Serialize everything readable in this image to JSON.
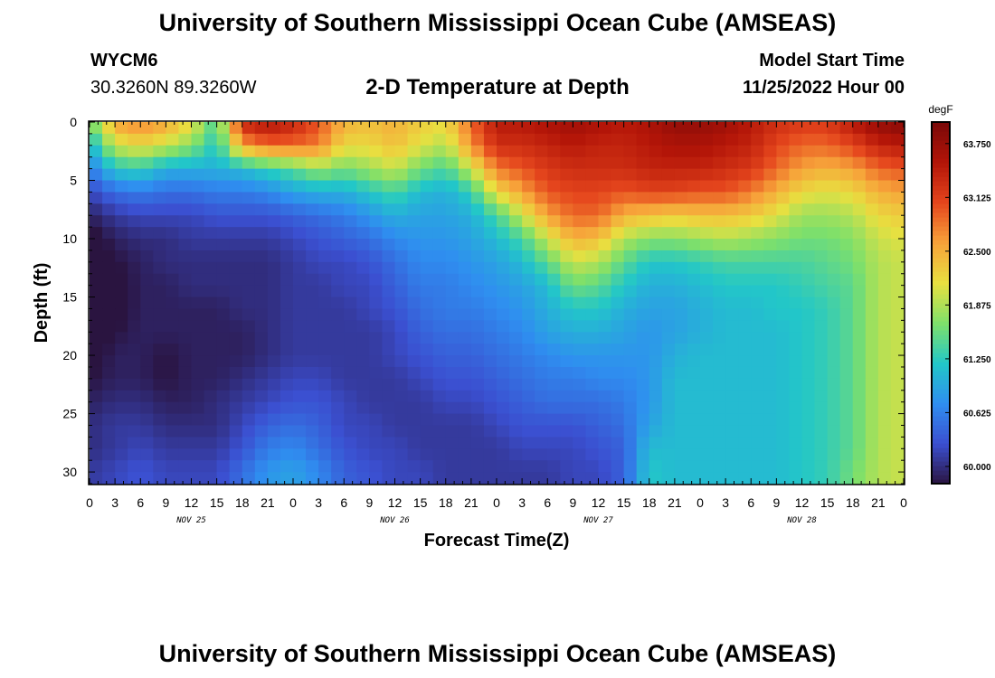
{
  "header": {
    "title": "University of Southern Mississippi Ocean Cube (AMSEAS)",
    "station_id": "WYCM6",
    "station_coords": "30.3260N  89.3260W",
    "plot_title": "2-D Temperature at Depth",
    "model_start_label": "Model Start Time",
    "model_start_date": "11/25/2022 Hour 00"
  },
  "footer": {
    "title": "University of Southern Mississippi Ocean Cube (AMSEAS)"
  },
  "colors": {
    "colormap": [
      "#2a1440",
      "#3b4fd0",
      "#2f8ef0",
      "#22c7c8",
      "#7fe06a",
      "#e8e040",
      "#f7a33a",
      "#e5461d",
      "#b31508",
      "#7a0808"
    ]
  },
  "chart_data": {
    "type": "heatmap",
    "xlabel": "Forecast Time(Z)",
    "ylabel": "Depth (ft)",
    "x_tick_labels": [
      "0",
      "3",
      "6",
      "9",
      "12",
      "15",
      "18",
      "21",
      "0",
      "3",
      "6",
      "9",
      "12",
      "15",
      "18",
      "21",
      "0",
      "3",
      "6",
      "9",
      "12",
      "15",
      "18",
      "21",
      "0",
      "3",
      "6",
      "9",
      "12",
      "15",
      "18",
      "21",
      "0"
    ],
    "day_labels": [
      "NOV 25",
      "NOV 26",
      "NOV 27",
      "NOV 28"
    ],
    "xlim_hours": [
      0,
      96
    ],
    "y_tick_labels": [
      "0",
      "5",
      "10",
      "15",
      "20",
      "25",
      "30"
    ],
    "ylim_ft": [
      0,
      31
    ],
    "y_inverted": true,
    "colorbar": {
      "unit": "degF",
      "range": [
        59.8,
        64.0
      ],
      "tick_labels": [
        "63.750",
        "63.125",
        "62.500",
        "61.875",
        "61.250",
        "60.625",
        "60.000"
      ],
      "tick_values": [
        63.75,
        63.125,
        62.5,
        61.875,
        61.25,
        60.625,
        60.0
      ]
    },
    "depth_levels_ft": [
      0,
      2,
      4,
      6,
      8,
      10,
      12,
      14,
      16,
      18,
      20,
      22,
      24,
      26,
      28,
      30
    ],
    "time_hours": [
      0,
      3,
      6,
      9,
      12,
      15,
      18,
      21,
      24,
      27,
      30,
      33,
      36,
      39,
      42,
      45,
      48,
      51,
      54,
      57,
      60,
      63,
      66,
      69,
      72,
      75,
      78,
      81,
      84,
      87,
      90,
      93,
      96
    ],
    "temperature_profiles": [
      {
        "time": 0,
        "values": [
          61.6,
          61.0,
          60.6,
          60.2,
          59.9,
          59.7,
          59.6,
          59.5,
          59.5,
          59.6,
          59.7,
          59.8,
          59.9,
          60.0,
          60.0,
          60.1
        ]
      },
      {
        "time": 3,
        "values": [
          62.6,
          62.0,
          61.2,
          60.5,
          60.1,
          59.9,
          59.8,
          59.7,
          59.7,
          59.8,
          59.9,
          59.9,
          60.0,
          60.1,
          60.1,
          60.2
        ]
      },
      {
        "time": 6,
        "values": [
          62.8,
          62.2,
          61.3,
          60.6,
          60.2,
          60.0,
          59.9,
          59.9,
          59.9,
          59.9,
          59.9,
          59.9,
          60.0,
          60.1,
          60.2,
          60.3
        ]
      },
      {
        "time": 9,
        "values": [
          62.6,
          62.0,
          61.0,
          60.5,
          60.2,
          60.0,
          60.0,
          59.9,
          59.9,
          59.9,
          59.8,
          59.8,
          59.9,
          60.0,
          60.1,
          60.2
        ]
      },
      {
        "time": 12,
        "values": [
          62.2,
          61.7,
          61.0,
          60.5,
          60.2,
          60.1,
          60.0,
          60.0,
          59.9,
          59.9,
          59.9,
          59.9,
          59.9,
          60.0,
          60.1,
          60.2
        ]
      },
      {
        "time": 15,
        "values": [
          61.4,
          61.2,
          61.0,
          60.6,
          60.3,
          60.1,
          60.0,
          60.0,
          59.9,
          59.9,
          59.9,
          59.9,
          60.0,
          60.0,
          60.1,
          60.2
        ]
      },
      {
        "time": 18,
        "values": [
          63.4,
          62.6,
          61.1,
          60.6,
          60.3,
          60.1,
          60.0,
          60.0,
          60.0,
          59.9,
          59.9,
          60.0,
          60.1,
          60.2,
          60.3,
          60.5
        ]
      },
      {
        "time": 21,
        "values": [
          63.6,
          62.9,
          61.3,
          60.7,
          60.3,
          60.1,
          60.0,
          60.0,
          60.0,
          60.0,
          60.0,
          60.1,
          60.2,
          60.4,
          60.6,
          60.8
        ]
      },
      {
        "time": 24,
        "values": [
          63.4,
          62.9,
          61.5,
          60.9,
          60.4,
          60.2,
          60.1,
          60.1,
          60.1,
          60.1,
          60.1,
          60.2,
          60.3,
          60.5,
          60.7,
          60.9
        ]
      },
      {
        "time": 27,
        "values": [
          63.0,
          62.8,
          61.8,
          61.0,
          60.5,
          60.3,
          60.2,
          60.1,
          60.1,
          60.1,
          60.1,
          60.2,
          60.3,
          60.4,
          60.5,
          60.7
        ]
      },
      {
        "time": 30,
        "values": [
          62.5,
          62.2,
          61.6,
          61.0,
          60.6,
          60.4,
          60.2,
          60.2,
          60.1,
          60.1,
          60.1,
          60.1,
          60.2,
          60.2,
          60.3,
          60.4
        ]
      },
      {
        "time": 33,
        "values": [
          62.4,
          62.2,
          61.8,
          61.2,
          60.8,
          60.5,
          60.3,
          60.2,
          60.2,
          60.1,
          60.1,
          60.1,
          60.1,
          60.2,
          60.2,
          60.3
        ]
      },
      {
        "time": 36,
        "values": [
          62.5,
          62.4,
          62.0,
          61.4,
          61.0,
          60.7,
          60.5,
          60.4,
          60.3,
          60.2,
          60.2,
          60.1,
          60.1,
          60.1,
          60.2,
          60.2
        ]
      },
      {
        "time": 39,
        "values": [
          62.3,
          62.1,
          61.6,
          61.1,
          60.9,
          60.8,
          60.7,
          60.6,
          60.5,
          60.4,
          60.3,
          60.2,
          60.1,
          60.1,
          60.1,
          60.2
        ]
      },
      {
        "time": 42,
        "values": [
          62.2,
          61.9,
          61.4,
          61.0,
          60.9,
          60.8,
          60.7,
          60.6,
          60.6,
          60.5,
          60.4,
          60.3,
          60.2,
          60.1,
          60.1,
          60.1
        ]
      },
      {
        "time": 45,
        "values": [
          62.9,
          62.7,
          62.0,
          61.3,
          61.0,
          60.9,
          60.8,
          60.7,
          60.6,
          60.5,
          60.4,
          60.3,
          60.2,
          60.1,
          60.1,
          60.1
        ]
      },
      {
        "time": 48,
        "values": [
          63.5,
          63.3,
          62.8,
          62.2,
          61.4,
          61.1,
          60.9,
          60.8,
          60.7,
          60.6,
          60.5,
          60.4,
          60.3,
          60.2,
          60.1,
          60.1
        ]
      },
      {
        "time": 51,
        "values": [
          63.5,
          63.3,
          63.0,
          62.6,
          62.0,
          61.4,
          61.1,
          60.9,
          60.8,
          60.7,
          60.6,
          60.5,
          60.4,
          60.3,
          60.2,
          60.1
        ]
      },
      {
        "time": 54,
        "values": [
          63.6,
          63.4,
          63.2,
          63.0,
          62.6,
          62.0,
          61.5,
          61.1,
          61.0,
          60.9,
          60.7,
          60.6,
          60.5,
          60.3,
          60.2,
          60.1
        ]
      },
      {
        "time": 57,
        "values": [
          63.7,
          63.5,
          63.3,
          63.1,
          62.9,
          62.5,
          62.0,
          61.6,
          61.2,
          61.0,
          60.8,
          60.6,
          60.5,
          60.3,
          60.2,
          60.2
        ]
      },
      {
        "time": 60,
        "values": [
          63.6,
          63.4,
          63.3,
          63.1,
          62.9,
          62.4,
          61.9,
          61.5,
          61.2,
          61.0,
          60.8,
          60.7,
          60.5,
          60.4,
          60.3,
          60.2
        ]
      },
      {
        "time": 63,
        "values": [
          63.5,
          63.4,
          63.3,
          63.0,
          62.5,
          61.9,
          61.5,
          61.2,
          61.0,
          60.9,
          60.8,
          60.7,
          60.6,
          60.5,
          60.4,
          60.4
        ]
      },
      {
        "time": 66,
        "values": [
          63.6,
          63.5,
          63.4,
          63.1,
          62.4,
          61.7,
          61.2,
          61.0,
          60.9,
          60.8,
          60.8,
          60.8,
          60.8,
          60.9,
          61.1,
          61.2
        ]
      },
      {
        "time": 69,
        "values": [
          63.8,
          63.6,
          63.4,
          63.1,
          62.3,
          61.7,
          61.2,
          61.0,
          60.9,
          60.9,
          61.0,
          61.1,
          61.1,
          61.1,
          61.1,
          61.1
        ]
      },
      {
        "time": 72,
        "values": [
          63.8,
          63.6,
          63.4,
          63.0,
          62.4,
          61.8,
          61.3,
          61.1,
          61.0,
          61.0,
          61.1,
          61.1,
          61.1,
          61.1,
          61.1,
          61.1
        ]
      },
      {
        "time": 75,
        "values": [
          63.7,
          63.5,
          63.3,
          63.0,
          62.4,
          61.9,
          61.4,
          61.2,
          61.1,
          61.1,
          61.1,
          61.1,
          61.1,
          61.1,
          61.1,
          61.1
        ]
      },
      {
        "time": 78,
        "values": [
          63.5,
          63.4,
          63.2,
          62.8,
          62.3,
          61.8,
          61.4,
          61.2,
          61.1,
          61.1,
          61.1,
          61.1,
          61.1,
          61.1,
          61.1,
          61.1
        ]
      },
      {
        "time": 81,
        "values": [
          63.3,
          63.1,
          62.9,
          62.5,
          62.1,
          61.7,
          61.4,
          61.2,
          61.2,
          61.1,
          61.1,
          61.1,
          61.1,
          61.1,
          61.1,
          61.1
        ]
      },
      {
        "time": 84,
        "values": [
          63.2,
          62.9,
          62.6,
          62.2,
          61.8,
          61.6,
          61.4,
          61.3,
          61.2,
          61.2,
          61.2,
          61.2,
          61.2,
          61.2,
          61.2,
          61.2
        ]
      },
      {
        "time": 87,
        "values": [
          63.2,
          62.9,
          62.5,
          62.1,
          61.8,
          61.6,
          61.5,
          61.4,
          61.3,
          61.3,
          61.3,
          61.3,
          61.3,
          61.3,
          61.3,
          61.3
        ]
      },
      {
        "time": 90,
        "values": [
          63.5,
          63.1,
          62.6,
          62.2,
          61.9,
          61.7,
          61.6,
          61.5,
          61.5,
          61.5,
          61.5,
          61.5,
          61.5,
          61.5,
          61.5,
          61.6
        ]
      },
      {
        "time": 93,
        "values": [
          63.8,
          63.4,
          62.9,
          62.5,
          62.2,
          62.0,
          61.9,
          61.9,
          61.9,
          61.9,
          61.9,
          61.9,
          61.9,
          61.9,
          61.9,
          61.9
        ]
      },
      {
        "time": 96,
        "values": [
          63.9,
          63.5,
          63.0,
          62.6,
          62.3,
          62.1,
          62.0,
          62.0,
          62.0,
          62.0,
          62.0,
          62.0,
          62.0,
          62.0,
          62.0,
          62.0
        ]
      }
    ]
  }
}
